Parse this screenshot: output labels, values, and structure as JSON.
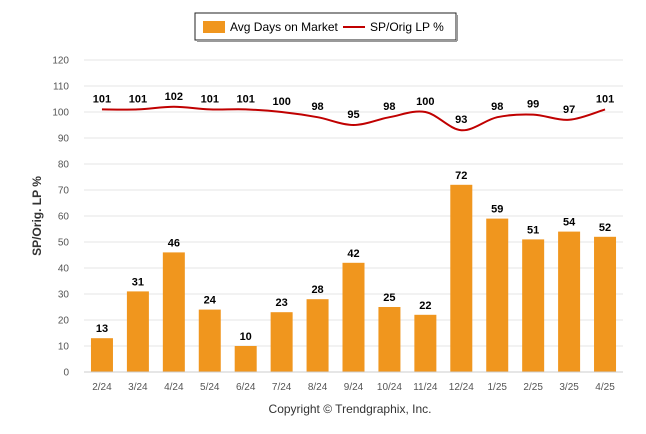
{
  "chart_data": {
    "type": "bar+line",
    "categories": [
      "2/24",
      "3/24",
      "4/24",
      "5/24",
      "6/24",
      "7/24",
      "8/24",
      "9/24",
      "10/24",
      "11/24",
      "12/24",
      "1/25",
      "2/25",
      "3/25",
      "4/25"
    ],
    "series": [
      {
        "name": "Avg Days on Market",
        "type": "bar",
        "color": "#F0961E",
        "values": [
          13,
          31,
          46,
          24,
          10,
          23,
          28,
          42,
          25,
          22,
          72,
          59,
          51,
          54,
          52
        ]
      },
      {
        "name": "SP/Orig LP %",
        "type": "line",
        "color": "#C00000",
        "values": [
          101,
          101,
          102,
          101,
          101,
          100,
          98,
          95,
          98,
          100,
          93,
          98,
          99,
          97,
          101
        ]
      }
    ],
    "ylabel": "SP/Orig. LP %",
    "ylim": [
      0,
      120
    ],
    "yticks": [
      0,
      10,
      20,
      30,
      40,
      50,
      60,
      70,
      80,
      90,
      100,
      110,
      120
    ],
    "grid": true,
    "legend": "top-center"
  },
  "footer": {
    "copyright": "Copyright © Trendgraphix, Inc."
  }
}
